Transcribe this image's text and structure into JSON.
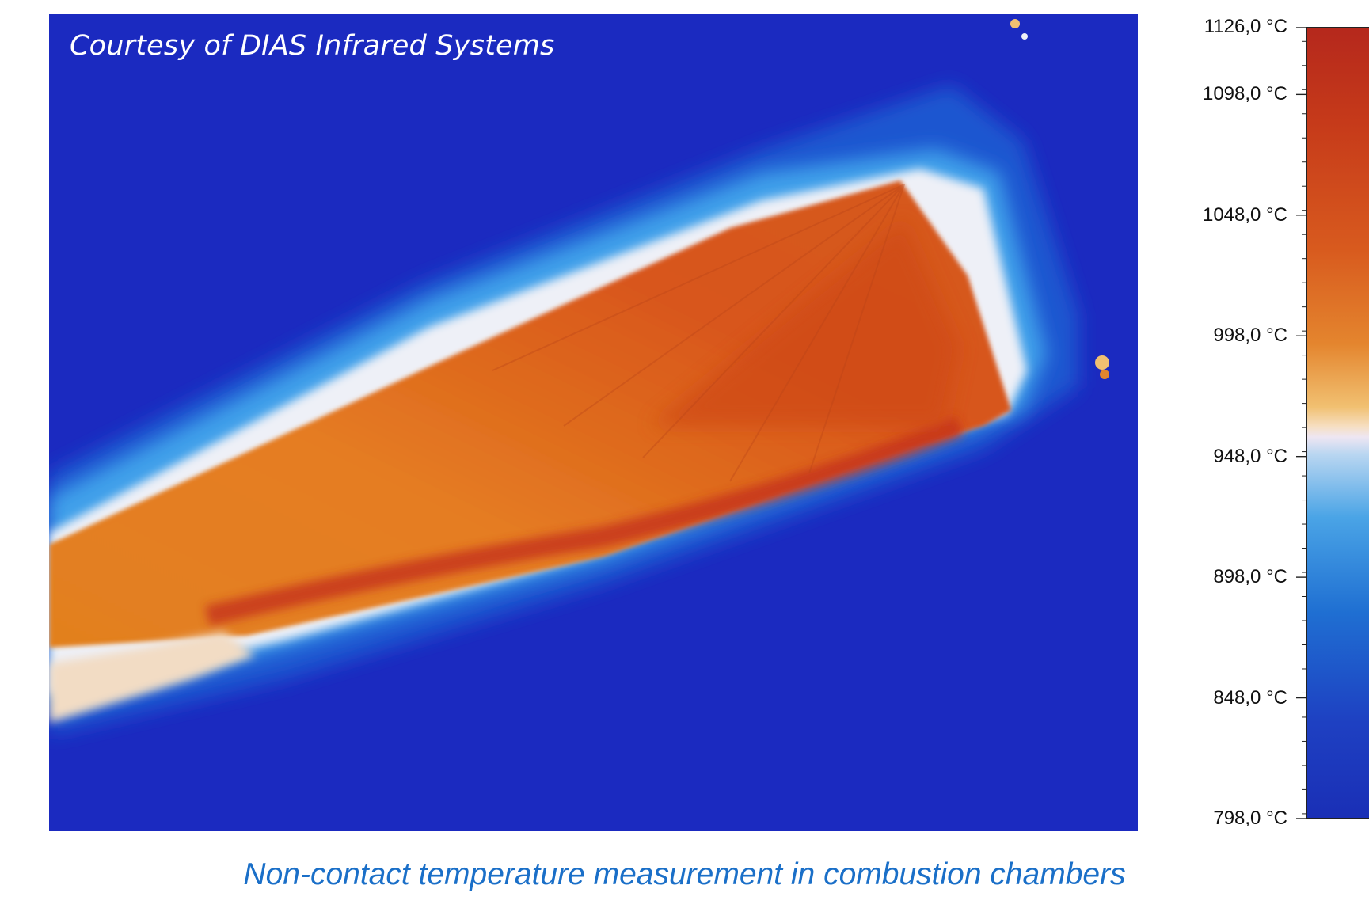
{
  "image": {
    "overlay_text": "Courtesy of DIAS Infrared Systems",
    "caption": "Non-contact temperature measurement in combustion chambers"
  },
  "colorbar": {
    "min_value": 798.0,
    "max_value": 1126.0,
    "labels": [
      {
        "text": "1126,0 °C",
        "value": 1126.0
      },
      {
        "text": "1098,0 °C",
        "value": 1098.0
      },
      {
        "text": "1048,0 °C",
        "value": 1048.0
      },
      {
        "text": "998,0 °C",
        "value": 998.0
      },
      {
        "text": "948,0 °C",
        "value": 948.0
      },
      {
        "text": "898,0 °C",
        "value": 898.0
      },
      {
        "text": "848,0 °C",
        "value": 848.0
      },
      {
        "text": "798,0 °C",
        "value": 798.0
      }
    ],
    "colors": {
      "hot": "#b5281c",
      "mid": "#e4852e",
      "neutral": "#f0e4ec",
      "cool": "#4aa4e6",
      "cold": "#1a2fb6"
    }
  }
}
